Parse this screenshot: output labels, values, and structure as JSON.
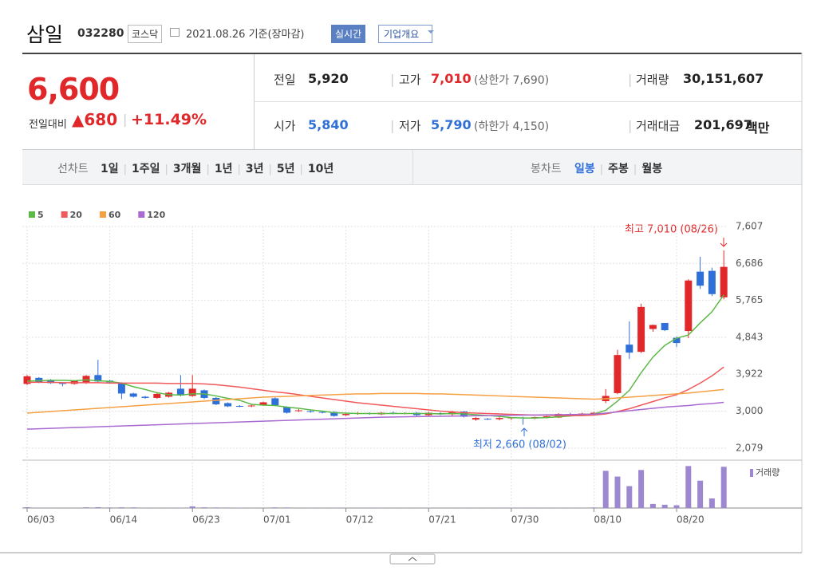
{
  "header": {
    "name": "삼일",
    "code": "032280",
    "market": "코스닥",
    "date": "2021.08.26 기준(장마감)",
    "realtime": "실시간",
    "company_info": "기업개요"
  },
  "quote": {
    "price": "6,600",
    "change_label": "전일대비",
    "change": "680",
    "change_rate": "+11.49%",
    "items": [
      {
        "label": "전일",
        "value": "5,920"
      },
      {
        "label": "고가",
        "value": "7,010",
        "extra": "(상한가 7,690)"
      },
      {
        "label": "거래량",
        "value": "30,151,607"
      },
      {
        "label": "시가",
        "value": "5,840"
      },
      {
        "label": "저가",
        "value": "5,790",
        "extra": "(하한가 4,150)"
      },
      {
        "label": "거래대금",
        "value": "201,697",
        "unit": "백만"
      }
    ]
  },
  "tabs": {
    "line_chart": "선차트",
    "periods": [
      "1일",
      "1주일",
      "3개월",
      "1년",
      "3년",
      "5년",
      "10년"
    ],
    "candle_chart": "봉차트",
    "candle_periods": [
      "일봉",
      "주봉",
      "월봉"
    ]
  },
  "chart_data": {
    "type": "candlestick",
    "categories": [
      "06/03",
      null,
      null,
      null,
      null,
      null,
      null,
      "06/14",
      null,
      null,
      null,
      null,
      null,
      null,
      "06/23",
      null,
      null,
      null,
      null,
      null,
      "07/01",
      null,
      null,
      null,
      null,
      null,
      null,
      "07/12",
      null,
      null,
      null,
      null,
      null,
      null,
      "07/21",
      null,
      null,
      null,
      null,
      null,
      null,
      "07/30",
      null,
      null,
      null,
      null,
      null,
      null,
      "08/10",
      null,
      null,
      null,
      null,
      null,
      null,
      "08/20",
      null,
      null,
      null,
      null
    ],
    "open": [
      3680,
      3830,
      3780,
      3700,
      3680,
      3700,
      3900,
      3760,
      3700,
      3440,
      3360,
      3330,
      3360,
      3560,
      3380,
      3520,
      3330,
      3200,
      3130,
      3120,
      3160,
      3320,
      3100,
      3000,
      3000,
      2980,
      2980,
      2900,
      2930,
      2950,
      2920,
      2960,
      2940,
      2960,
      2900,
      2950,
      2920,
      2990,
      2790,
      2810,
      2800,
      2830,
      2840,
      2820,
      2850,
      2840,
      2930,
      2920,
      2940,
      3250,
      3450,
      4660,
      4480,
      5050,
      5200,
      4830,
      5000,
      6480,
      6500,
      5840
    ],
    "high": [
      3900,
      3850,
      3800,
      3720,
      3770,
      3900,
      4280,
      3780,
      3720,
      3460,
      3380,
      3450,
      3480,
      3900,
      3900,
      3540,
      3350,
      3220,
      3150,
      3160,
      3240,
      3340,
      3120,
      3050,
      3020,
      3000,
      3000,
      2950,
      2980,
      2970,
      2980,
      2990,
      2970,
      2980,
      2980,
      2970,
      3010,
      3000,
      2850,
      2830,
      2850,
      2850,
      2860,
      2860,
      2880,
      2950,
      2960,
      2960,
      2980,
      3550,
      4530,
      5240,
      5680,
      5160,
      5200,
      4860,
      6290,
      6850,
      6580,
      7010
    ],
    "low": [
      3650,
      3700,
      3680,
      3620,
      3660,
      3680,
      3720,
      3700,
      3300,
      3340,
      3310,
      3310,
      3340,
      3370,
      3360,
      3300,
      3150,
      3100,
      3100,
      3100,
      3140,
      3140,
      2940,
      2980,
      2960,
      2940,
      2860,
      2880,
      2910,
      2910,
      2900,
      2920,
      2920,
      2880,
      2880,
      2900,
      2890,
      2840,
      2760,
      2780,
      2770,
      2780,
      2660,
      2800,
      2820,
      2830,
      2900,
      2900,
      2920,
      3200,
      3420,
      4300,
      4450,
      4980,
      5000,
      4600,
      4820,
      6050,
      5870,
      5790
    ],
    "close": [
      3870,
      3720,
      3700,
      3680,
      3760,
      3880,
      3740,
      3720,
      3440,
      3360,
      3330,
      3430,
      3460,
      3390,
      3560,
      3330,
      3170,
      3120,
      3120,
      3140,
      3220,
      3150,
      2960,
      3020,
      2980,
      2960,
      2880,
      2930,
      2950,
      2930,
      2960,
      2940,
      2950,
      2900,
      2960,
      2920,
      2990,
      2860,
      2830,
      2800,
      2830,
      2840,
      2820,
      2850,
      2870,
      2930,
      2920,
      2940,
      2960,
      3380,
      4400,
      4460,
      5600,
      5150,
      5020,
      4700,
      6260,
      6130,
      5920,
      6600
    ],
    "up_color": "#e0282b",
    "down_color": "#2f6fd8",
    "series": [
      {
        "name": "5",
        "color": "#5cb946",
        "values": [
          3750,
          3760,
          3770,
          3770,
          3760,
          3780,
          3760,
          3740,
          3700,
          3610,
          3540,
          3460,
          3410,
          3400,
          3430,
          3430,
          3380,
          3320,
          3270,
          3170,
          3150,
          3140,
          3100,
          3070,
          3030,
          3000,
          2960,
          2950,
          2940,
          2940,
          2940,
          2940,
          2940,
          2940,
          2940,
          2930,
          2940,
          2930,
          2910,
          2890,
          2870,
          2840,
          2830,
          2830,
          2840,
          2860,
          2880,
          2910,
          2930,
          3020,
          3250,
          3520,
          3960,
          4350,
          4640,
          4820,
          4900,
          5200,
          5480,
          5900
        ]
      },
      {
        "name": "20",
        "color": "#f0585a",
        "values": [
          3720,
          3720,
          3720,
          3710,
          3710,
          3710,
          3710,
          3700,
          3700,
          3700,
          3700,
          3700,
          3690,
          3690,
          3690,
          3680,
          3660,
          3630,
          3600,
          3560,
          3520,
          3480,
          3450,
          3410,
          3370,
          3330,
          3290,
          3250,
          3210,
          3180,
          3150,
          3120,
          3090,
          3060,
          3030,
          3000,
          2980,
          2960,
          2950,
          2940,
          2930,
          2920,
          2910,
          2900,
          2900,
          2890,
          2890,
          2890,
          2900,
          2930,
          2990,
          3060,
          3150,
          3240,
          3330,
          3410,
          3540,
          3700,
          3880,
          4100
        ]
      },
      {
        "name": "60",
        "color": "#f5a043",
        "values": [
          2950,
          2970,
          2990,
          3010,
          3030,
          3050,
          3070,
          3090,
          3110,
          3130,
          3150,
          3170,
          3190,
          3210,
          3230,
          3250,
          3270,
          3290,
          3310,
          3330,
          3350,
          3360,
          3370,
          3380,
          3390,
          3400,
          3410,
          3420,
          3430,
          3430,
          3440,
          3440,
          3440,
          3440,
          3430,
          3430,
          3420,
          3410,
          3400,
          3390,
          3380,
          3370,
          3360,
          3350,
          3340,
          3330,
          3320,
          3310,
          3300,
          3310,
          3330,
          3350,
          3370,
          3390,
          3410,
          3430,
          3450,
          3480,
          3510,
          3540
        ]
      },
      {
        "name": "120",
        "color": "#a86ad1",
        "values": [
          2550,
          2560,
          2570,
          2580,
          2590,
          2600,
          2610,
          2620,
          2630,
          2640,
          2650,
          2660,
          2670,
          2680,
          2690,
          2700,
          2710,
          2720,
          2730,
          2740,
          2750,
          2760,
          2770,
          2780,
          2790,
          2800,
          2810,
          2820,
          2830,
          2840,
          2850,
          2855,
          2860,
          2864,
          2868,
          2872,
          2876,
          2880,
          2884,
          2888,
          2892,
          2896,
          2900,
          2904,
          2908,
          2912,
          2916,
          2920,
          2925,
          2950,
          2980,
          3010,
          3040,
          3070,
          3100,
          3120,
          3140,
          3170,
          3190,
          3220
        ]
      }
    ],
    "ylim": [
      1777,
      7607
    ],
    "yticks": [
      {
        "value": 7607,
        "label": "7,607"
      },
      {
        "value": 6686,
        "label": "6,686"
      },
      {
        "value": 5765,
        "label": "5,765"
      },
      {
        "value": 4843,
        "label": "4,843"
      },
      {
        "value": 3922,
        "label": "3,922"
      },
      {
        "value": 3000,
        "label": "3,000"
      },
      {
        "value": 2079,
        "label": "2,079"
      }
    ],
    "grid": true,
    "max_label": "최고 7,010 (08/26)",
    "min_label": "최저 2,660 (08/02)",
    "volume": {
      "name": "거래량",
      "color": "#9d87d0",
      "ylim": [
        0,
        31500000
      ],
      "values": [
        600000,
        150000,
        120000,
        100000,
        130000,
        500000,
        600000,
        400000,
        500000,
        450000,
        150000,
        120000,
        100000,
        250000,
        1200000,
        500000,
        400000,
        350000,
        300000,
        120000,
        100000,
        450000,
        400000,
        100000,
        150000,
        120000,
        150000,
        100000,
        130000,
        120000,
        150000,
        100000,
        120000,
        140000,
        150000,
        120000,
        130000,
        150000,
        120000,
        100000,
        140000,
        150000,
        200000,
        120000,
        130000,
        150000,
        140000,
        160000,
        400000,
        27200000,
        23000000,
        16000000,
        27800000,
        3000000,
        2400000,
        2000000,
        30700000,
        20000000,
        7000000,
        30151607
      ]
    }
  }
}
